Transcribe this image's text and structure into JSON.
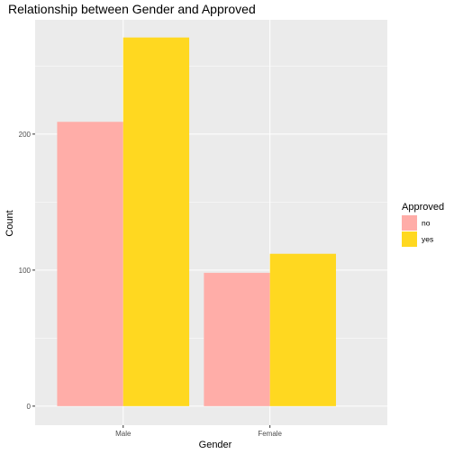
{
  "chart_data": {
    "type": "bar",
    "title": "Relationship between Gender and Approved",
    "xlabel": "Gender",
    "ylabel": "Count",
    "categories": [
      "Male",
      "Female"
    ],
    "series": [
      {
        "name": "no",
        "color": "#FFADA8",
        "values": [
          209,
          98
        ]
      },
      {
        "name": "yes",
        "color": "#FFD820",
        "values": [
          271,
          112
        ]
      }
    ],
    "ylim": [
      -14,
      284
    ],
    "yticks": [
      0,
      100,
      200
    ],
    "ytick_labels": [
      "0",
      "100",
      "200"
    ],
    "grid": true,
    "panel_background": "#EBEBEB",
    "legend": {
      "title": "Approved",
      "position": "right"
    }
  }
}
